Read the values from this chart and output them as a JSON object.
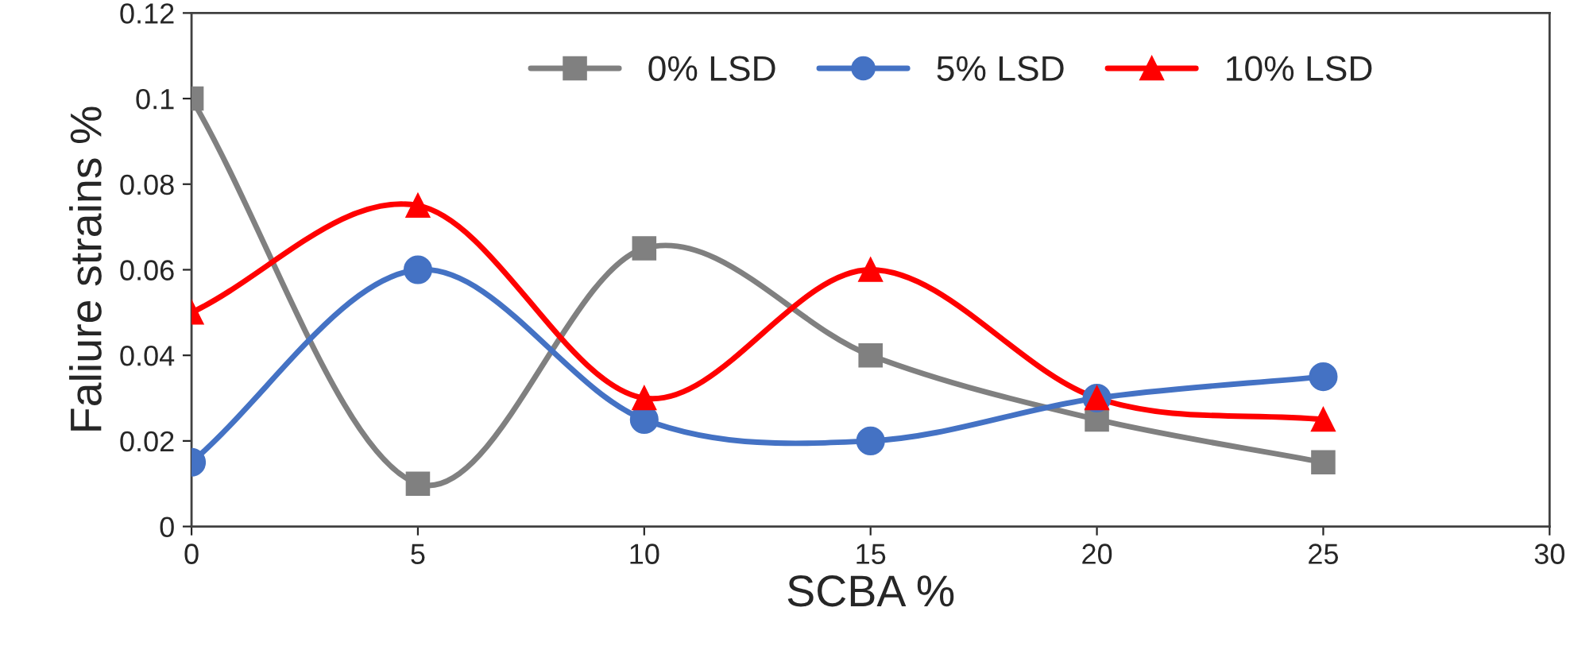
{
  "chart_data": {
    "type": "line",
    "xlabel": "SCBA %",
    "ylabel": "Faliure strains %",
    "x": [
      0,
      5,
      10,
      15,
      20,
      25
    ],
    "series": [
      {
        "name": "0% LSD",
        "color": "#808080",
        "marker": "square",
        "values": [
          0.1,
          0.01,
          0.065,
          0.04,
          0.025,
          0.015
        ]
      },
      {
        "name": "5% LSD",
        "color": "#4472c4",
        "marker": "circle",
        "values": [
          0.015,
          0.06,
          0.025,
          0.02,
          0.03,
          0.035
        ]
      },
      {
        "name": "10% LSD",
        "color": "#ff0000",
        "marker": "triangle",
        "values": [
          0.05,
          0.075,
          0.03,
          0.06,
          0.03,
          0.025
        ]
      }
    ],
    "xlim": [
      0,
      30
    ],
    "xticks": [
      0,
      5,
      10,
      15,
      20,
      25,
      30
    ],
    "ylim": [
      0,
      0.12
    ],
    "yticks": [
      0,
      0.02,
      0.04,
      0.06,
      0.08,
      0.1,
      0.12
    ],
    "grid": false,
    "legend": "top",
    "line_style": "solid"
  }
}
